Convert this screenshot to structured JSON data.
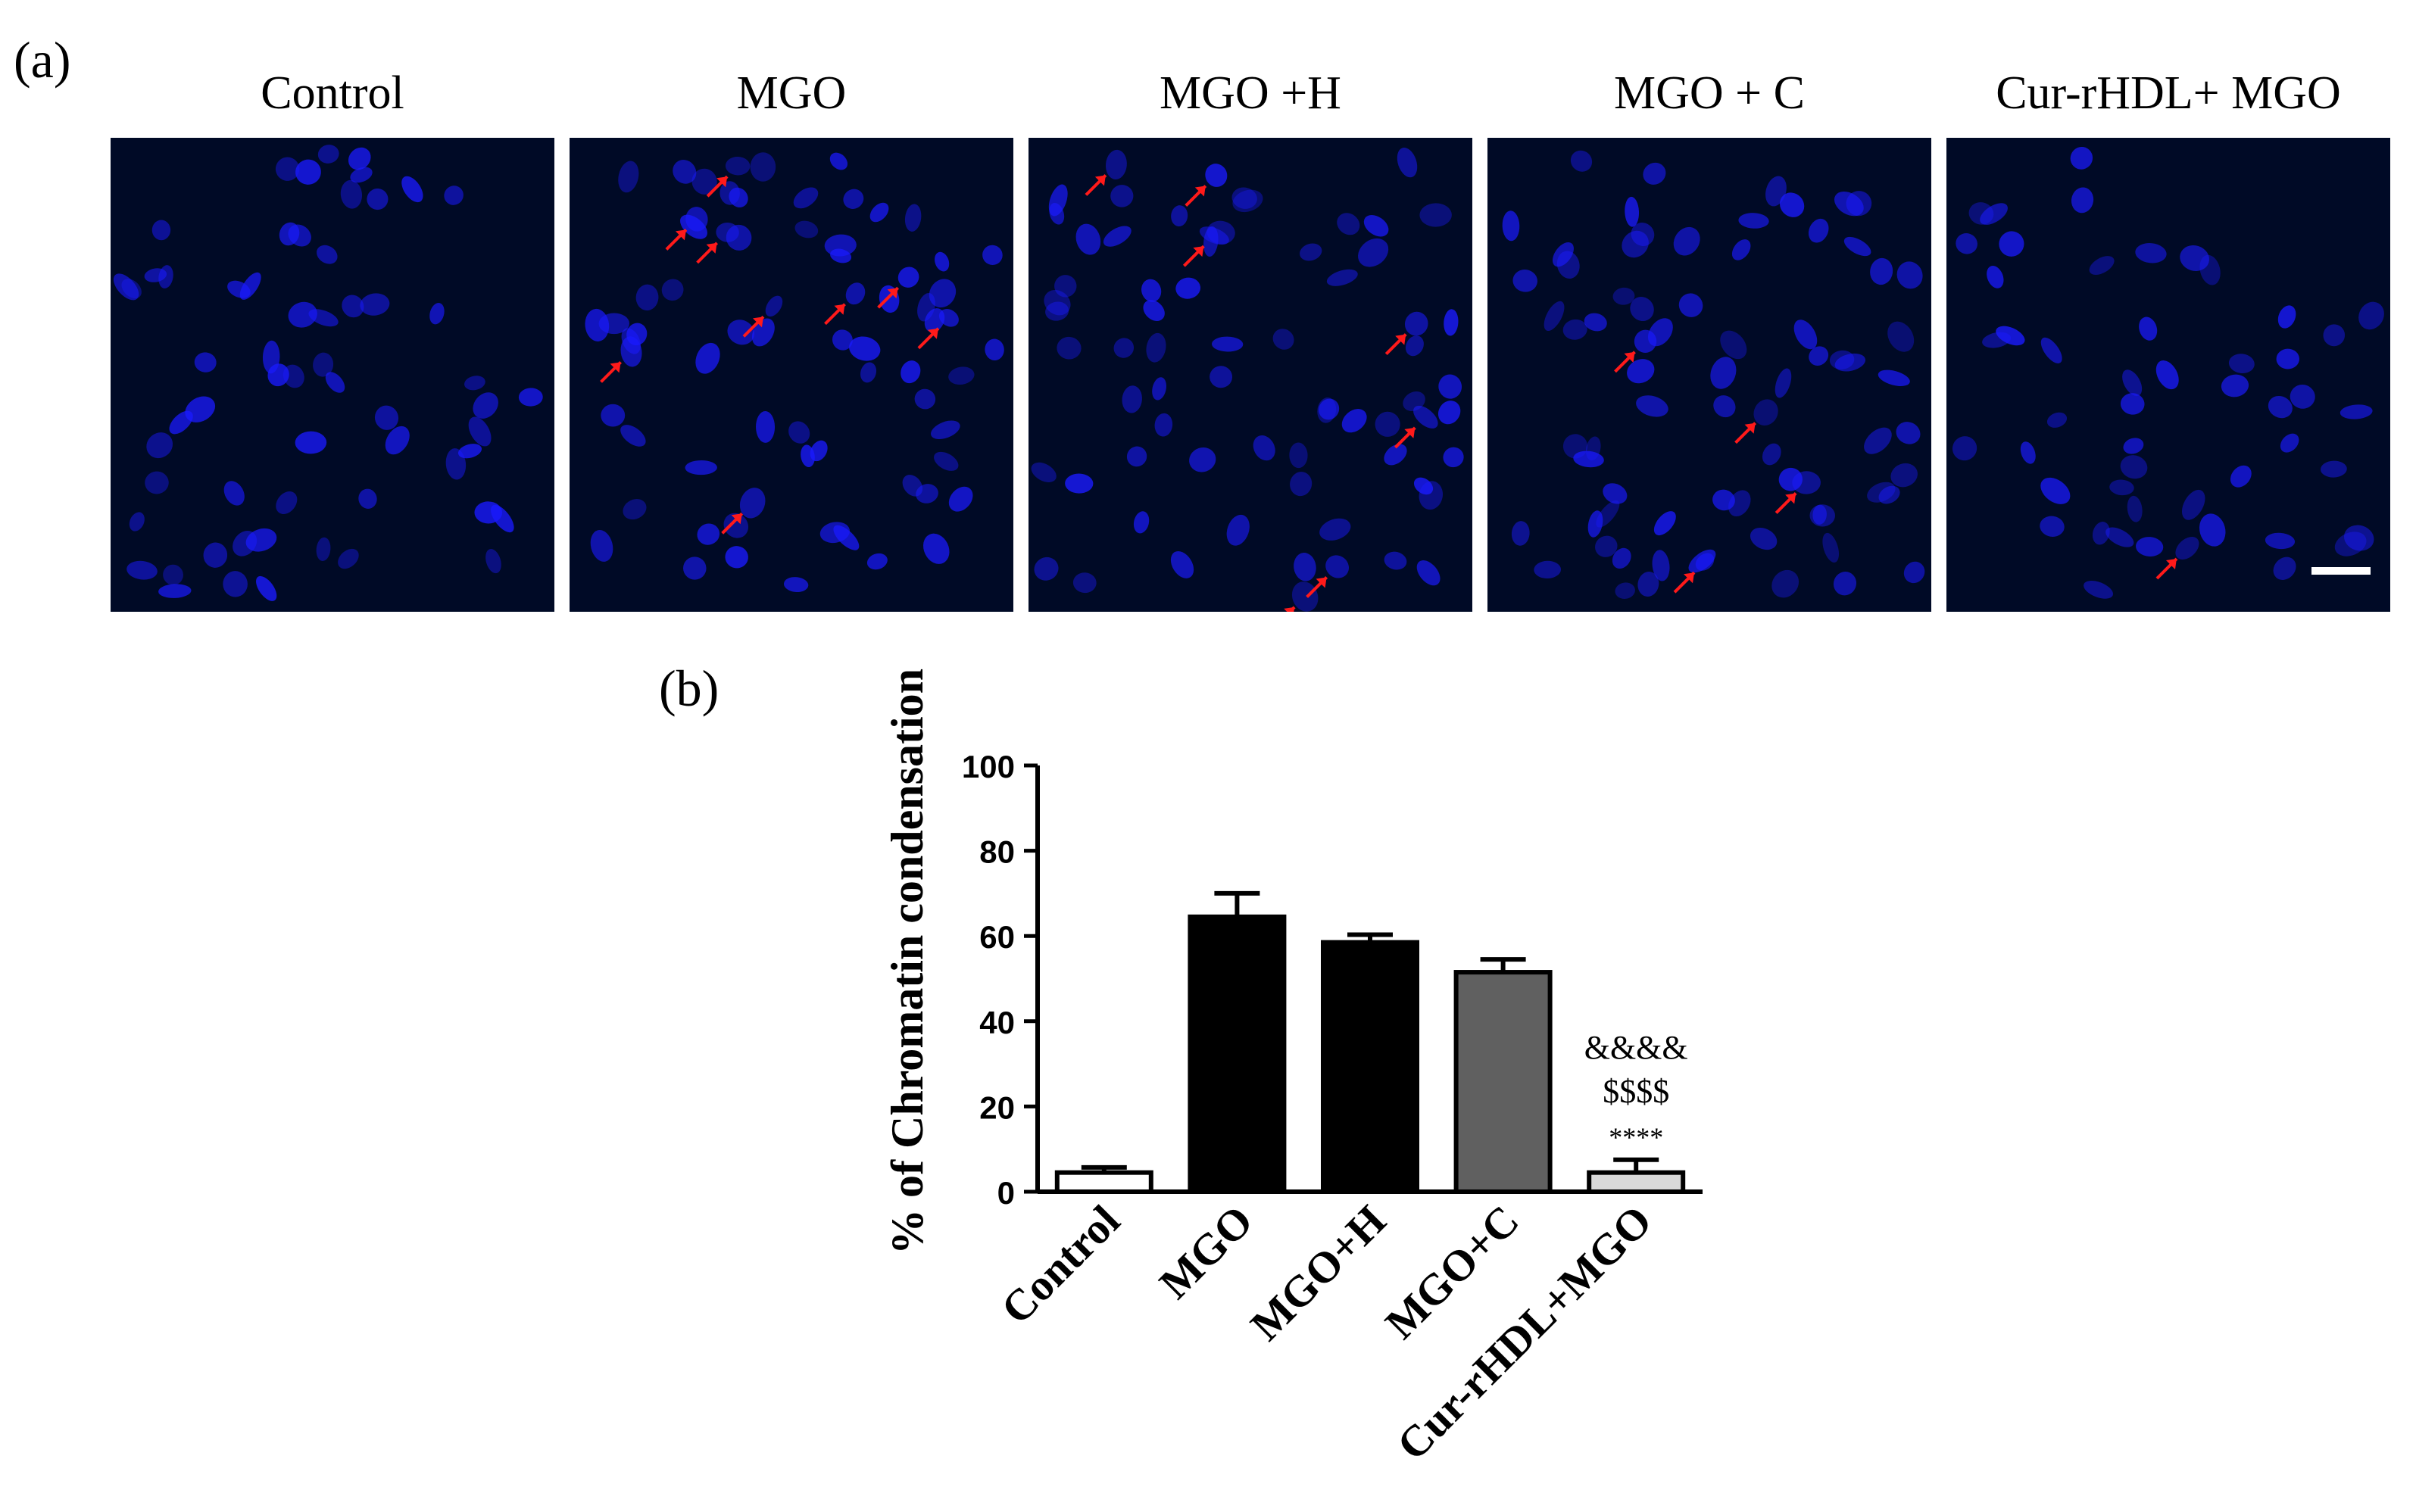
{
  "figure": {
    "label_a": "(a)",
    "label_b": "(b)",
    "panel_titles": [
      "Control",
      "MGO",
      "MGO +H",
      "MGO + C",
      "Cur-rHDL+ MGO"
    ],
    "stain_color": "#1a1aff",
    "arrow_color": "#ff1a1a"
  },
  "chart_data": {
    "type": "bar",
    "title": "",
    "xlabel": "",
    "ylabel": "% of Chromatin condensation",
    "categories": [
      "Control",
      "MGO",
      "MGO+H",
      "MGO+C",
      "Cur-rHDL+MGO"
    ],
    "values": [
      4.5,
      64.5,
      58.5,
      51.5,
      4.5
    ],
    "errors": [
      1.2,
      5.5,
      1.8,
      3.0,
      3.0
    ],
    "bar_colors": [
      "#ffffff",
      "#000000",
      "#000000",
      "#606060",
      "#d9d9d9"
    ],
    "ylim": [
      0,
      100
    ],
    "yticks": [
      0,
      20,
      40,
      60,
      80,
      100
    ],
    "grid": false,
    "significance": [
      {
        "category": "Cur-rHDL+MGO",
        "lines": [
          "&&&&",
          "$$$$",
          "****"
        ]
      }
    ]
  }
}
